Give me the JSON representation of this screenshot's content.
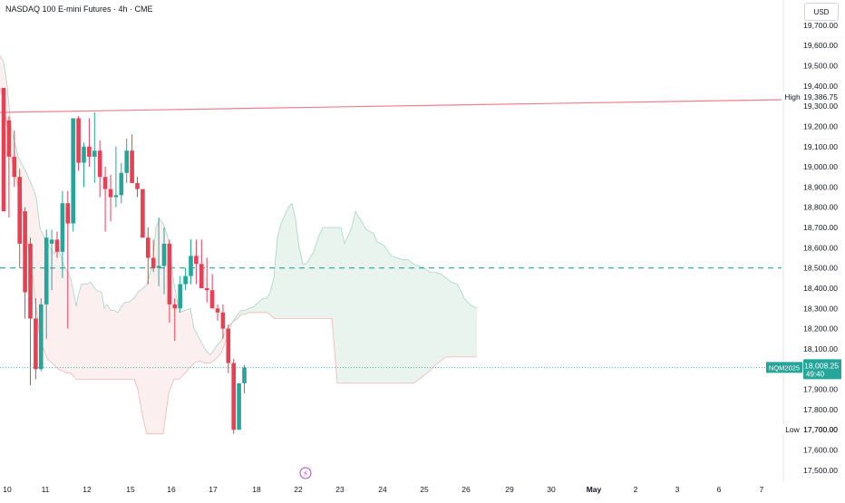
{
  "header": {
    "title": "NASDAQ 100 E-mini Futures · 4h · CME",
    "currency": "USD"
  },
  "colors": {
    "up": "#26a69a",
    "down": "#e83f54",
    "cloud_up": "#e6f4ef",
    "cloud_down": "#fbe9ea",
    "line": "#f07f8a"
  },
  "chart_data": {
    "type": "candlestick",
    "y_axis": {
      "min": 17450,
      "max": 19780,
      "ticks": [
        17500,
        17600,
        17700,
        17800,
        17900,
        18000,
        18100,
        18200,
        18300,
        18400,
        18500,
        18600,
        18700,
        18800,
        18900,
        19000,
        19100,
        19200,
        19300,
        19400,
        19500,
        19600,
        19700
      ]
    },
    "x_axis": {
      "labels": [
        "10",
        "11",
        "12",
        "15",
        "16",
        "17",
        "18",
        "22",
        "23",
        "24",
        "25",
        "26",
        "29",
        "30",
        "May",
        "2",
        "3",
        "6",
        "7"
      ]
    },
    "candles": [
      [
        19390,
        19390,
        18800,
        18780
      ],
      [
        19230,
        19250,
        18750,
        19050
      ],
      [
        19050,
        19180,
        18900,
        18950
      ],
      [
        18950,
        18990,
        18500,
        18620
      ],
      [
        18780,
        18800,
        18250,
        18380
      ],
      [
        18620,
        18650,
        17920,
        18250
      ],
      [
        18250,
        18350,
        17950,
        18000
      ],
      [
        18000,
        18350,
        17990,
        18320
      ],
      [
        18320,
        18690,
        18150,
        18650
      ],
      [
        18620,
        18690,
        18390,
        18640
      ],
      [
        18640,
        18680,
        18550,
        18580
      ],
      [
        18580,
        18880,
        18450,
        18820
      ],
      [
        18820,
        18880,
        18200,
        18720
      ],
      [
        18720,
        19240,
        18680,
        19240
      ],
      [
        19240,
        19250,
        18980,
        19020
      ],
      [
        19020,
        19120,
        18900,
        19100
      ],
      [
        19100,
        19240,
        19000,
        19050
      ],
      [
        19050,
        19270,
        18920,
        19080
      ],
      [
        19080,
        19130,
        18850,
        18950
      ],
      [
        18950,
        19000,
        18680,
        18890
      ],
      [
        18890,
        18960,
        18730,
        18850
      ],
      [
        18850,
        19100,
        18800,
        18860
      ],
      [
        18860,
        19020,
        18820,
        18970
      ],
      [
        18970,
        19140,
        18920,
        19080
      ],
      [
        19080,
        19160,
        18920,
        18920
      ],
      [
        18920,
        18950,
        18850,
        18890
      ],
      [
        18890,
        18880,
        18650,
        18650
      ],
      [
        18650,
        18700,
        18420,
        18550
      ],
      [
        18550,
        18640,
        18480,
        18500
      ],
      [
        18500,
        18750,
        18410,
        18510
      ],
      [
        18510,
        18700,
        18370,
        18620
      ],
      [
        18620,
        18640,
        18230,
        18320
      ],
      [
        18320,
        18350,
        18140,
        18300
      ],
      [
        18300,
        18460,
        18280,
        18420
      ],
      [
        18420,
        18500,
        18390,
        18460
      ],
      [
        18460,
        18640,
        18420,
        18560
      ],
      [
        18560,
        18640,
        18420,
        18520
      ],
      [
        18520,
        18640,
        18420,
        18400
      ],
      [
        18400,
        18550,
        18330,
        18390
      ],
      [
        18390,
        18470,
        18320,
        18300
      ],
      [
        18300,
        18320,
        18240,
        18280
      ],
      [
        18280,
        18320,
        18150,
        18200
      ],
      [
        18200,
        18220,
        17980,
        18030
      ],
      [
        18030,
        18050,
        17680,
        17700
      ],
      [
        17700,
        17930,
        17700,
        17930
      ],
      [
        17930,
        18020,
        17880,
        18008
      ]
    ],
    "cloud_top": [
      [
        0,
        19550
      ],
      [
        4,
        19520
      ],
      [
        8,
        19400
      ],
      [
        12,
        19200
      ],
      [
        20,
        19050
      ],
      [
        28,
        18980
      ],
      [
        36,
        18900
      ],
      [
        40,
        18850
      ],
      [
        44,
        18700
      ],
      [
        52,
        18620
      ],
      [
        60,
        18570
      ],
      [
        64,
        18600
      ],
      [
        70,
        18520
      ],
      [
        74,
        18480
      ],
      [
        78,
        18450
      ],
      [
        84,
        18310
      ],
      [
        86,
        18360
      ],
      [
        90,
        18420
      ],
      [
        96,
        18420
      ],
      [
        100,
        18430
      ],
      [
        106,
        18390
      ],
      [
        112,
        18380
      ],
      [
        115,
        18300
      ],
      [
        118,
        18320
      ],
      [
        122,
        18290
      ],
      [
        126,
        18290
      ],
      [
        130,
        18280
      ],
      [
        134,
        18310
      ],
      [
        138,
        18330
      ],
      [
        142,
        18330
      ],
      [
        148,
        18350
      ],
      [
        152,
        18380
      ],
      [
        158,
        18400
      ],
      [
        162,
        18420
      ],
      [
        168,
        18510
      ],
      [
        172,
        18700
      ],
      [
        176,
        18740
      ],
      [
        180,
        18720
      ],
      [
        186,
        18640
      ],
      [
        192,
        18420
      ],
      [
        198,
        18280
      ],
      [
        204,
        18290
      ],
      [
        210,
        18300
      ],
      [
        214,
        18200
      ],
      [
        220,
        18150
      ],
      [
        226,
        18100
      ],
      [
        232,
        18070
      ],
      [
        238,
        18110
      ],
      [
        244,
        18140
      ],
      [
        250,
        18200
      ],
      [
        256,
        18230
      ],
      [
        262,
        18270
      ],
      [
        266,
        18290
      ],
      [
        270,
        18290
      ],
      [
        275,
        18300
      ],
      [
        280,
        18310
      ],
      [
        285,
        18330
      ],
      [
        290,
        18350
      ],
      [
        294,
        18350
      ],
      [
        298,
        18380
      ],
      [
        302,
        18450
      ],
      [
        306,
        18650
      ],
      [
        310,
        18720
      ],
      [
        314,
        18760
      ],
      [
        318,
        18800
      ],
      [
        322,
        18820
      ],
      [
        326,
        18740
      ],
      [
        330,
        18600
      ],
      [
        334,
        18520
      ],
      [
        338,
        18520
      ],
      [
        342,
        18550
      ],
      [
        346,
        18580
      ],
      [
        348,
        18610
      ],
      [
        352,
        18660
      ],
      [
        356,
        18700
      ],
      [
        360,
        18700
      ],
      [
        366,
        18700
      ],
      [
        372,
        18700
      ],
      [
        376,
        18700
      ],
      [
        380,
        18620
      ],
      [
        384,
        18660
      ],
      [
        388,
        18700
      ],
      [
        392,
        18780
      ],
      [
        396,
        18750
      ],
      [
        400,
        18720
      ],
      [
        404,
        18690
      ],
      [
        408,
        18680
      ],
      [
        412,
        18670
      ],
      [
        416,
        18630
      ],
      [
        420,
        18620
      ],
      [
        424,
        18610
      ],
      [
        428,
        18580
      ],
      [
        432,
        18560
      ],
      [
        438,
        18550
      ],
      [
        444,
        18540
      ],
      [
        450,
        18540
      ],
      [
        456,
        18520
      ],
      [
        462,
        18510
      ],
      [
        468,
        18500
      ],
      [
        474,
        18480
      ],
      [
        480,
        18480
      ],
      [
        486,
        18470
      ],
      [
        492,
        18450
      ],
      [
        498,
        18430
      ],
      [
        504,
        18420
      ],
      [
        508,
        18390
      ],
      [
        512,
        18350
      ],
      [
        518,
        18320
      ],
      [
        522,
        18310
      ],
      [
        526,
        18300
      ]
    ],
    "cloud_bottom": [
      [
        0,
        19390
      ],
      [
        4,
        19320
      ],
      [
        8,
        19200
      ],
      [
        12,
        19050
      ],
      [
        20,
        18900
      ],
      [
        28,
        18700
      ],
      [
        36,
        18450
      ],
      [
        40,
        18300
      ],
      [
        44,
        18150
      ],
      [
        52,
        18050
      ],
      [
        60,
        18020
      ],
      [
        64,
        18000
      ],
      [
        70,
        17990
      ],
      [
        74,
        17980
      ],
      [
        78,
        17980
      ],
      [
        84,
        17950
      ],
      [
        86,
        17950
      ],
      [
        90,
        17950
      ],
      [
        96,
        17950
      ],
      [
        100,
        17950
      ],
      [
        106,
        17950
      ],
      [
        112,
        17950
      ],
      [
        115,
        17950
      ],
      [
        118,
        17950
      ],
      [
        122,
        17950
      ],
      [
        126,
        17950
      ],
      [
        130,
        17950
      ],
      [
        134,
        17950
      ],
      [
        138,
        17950
      ],
      [
        142,
        17950
      ],
      [
        148,
        17950
      ],
      [
        152,
        17900
      ],
      [
        158,
        17750
      ],
      [
        162,
        17680
      ],
      [
        168,
        17680
      ],
      [
        172,
        17680
      ],
      [
        176,
        17680
      ],
      [
        180,
        17680
      ],
      [
        186,
        17880
      ],
      [
        192,
        17950
      ],
      [
        198,
        17950
      ],
      [
        204,
        17980
      ],
      [
        210,
        18010
      ],
      [
        214,
        18030
      ],
      [
        220,
        18040
      ],
      [
        226,
        18030
      ],
      [
        232,
        18030
      ],
      [
        238,
        18050
      ],
      [
        244,
        18080
      ],
      [
        250,
        18150
      ],
      [
        256,
        18230
      ],
      [
        262,
        18250
      ],
      [
        266,
        18270
      ],
      [
        270,
        18270
      ],
      [
        275,
        18280
      ],
      [
        280,
        18280
      ],
      [
        285,
        18280
      ],
      [
        290,
        18280
      ],
      [
        294,
        18280
      ],
      [
        298,
        18270
      ],
      [
        302,
        18250
      ],
      [
        306,
        18250
      ],
      [
        310,
        18250
      ],
      [
        314,
        18250
      ],
      [
        318,
        18250
      ],
      [
        322,
        18250
      ],
      [
        326,
        18250
      ],
      [
        330,
        18250
      ],
      [
        334,
        18250
      ],
      [
        338,
        18250
      ],
      [
        342,
        18250
      ],
      [
        346,
        18250
      ],
      [
        348,
        18250
      ],
      [
        352,
        18250
      ],
      [
        356,
        18250
      ],
      [
        360,
        18250
      ],
      [
        366,
        18250
      ],
      [
        372,
        17930
      ],
      [
        376,
        17930
      ],
      [
        380,
        17930
      ],
      [
        384,
        17930
      ],
      [
        388,
        17930
      ],
      [
        392,
        17930
      ],
      [
        396,
        17930
      ],
      [
        400,
        17930
      ],
      [
        404,
        17930
      ],
      [
        408,
        17930
      ],
      [
        412,
        17930
      ],
      [
        416,
        17930
      ],
      [
        420,
        17930
      ],
      [
        424,
        17930
      ],
      [
        428,
        17930
      ],
      [
        432,
        17930
      ],
      [
        438,
        17930
      ],
      [
        444,
        17930
      ],
      [
        450,
        17930
      ],
      [
        456,
        17930
      ],
      [
        462,
        17950
      ],
      [
        468,
        17970
      ],
      [
        474,
        17990
      ],
      [
        480,
        18020
      ],
      [
        486,
        18040
      ],
      [
        492,
        18060
      ],
      [
        498,
        18060
      ],
      [
        504,
        18060
      ],
      [
        508,
        18060
      ],
      [
        512,
        18060
      ],
      [
        518,
        18060
      ],
      [
        522,
        18060
      ],
      [
        526,
        18060
      ]
    ],
    "high_line": {
      "label": "High",
      "value": "19,386.75"
    },
    "low_line": {
      "label": "Low",
      "value": "17,700.00"
    },
    "dashed_line_level": 18500,
    "current_price": {
      "symbol": "NQM2025",
      "value": "18,008.25",
      "countdown": "49:40"
    }
  }
}
